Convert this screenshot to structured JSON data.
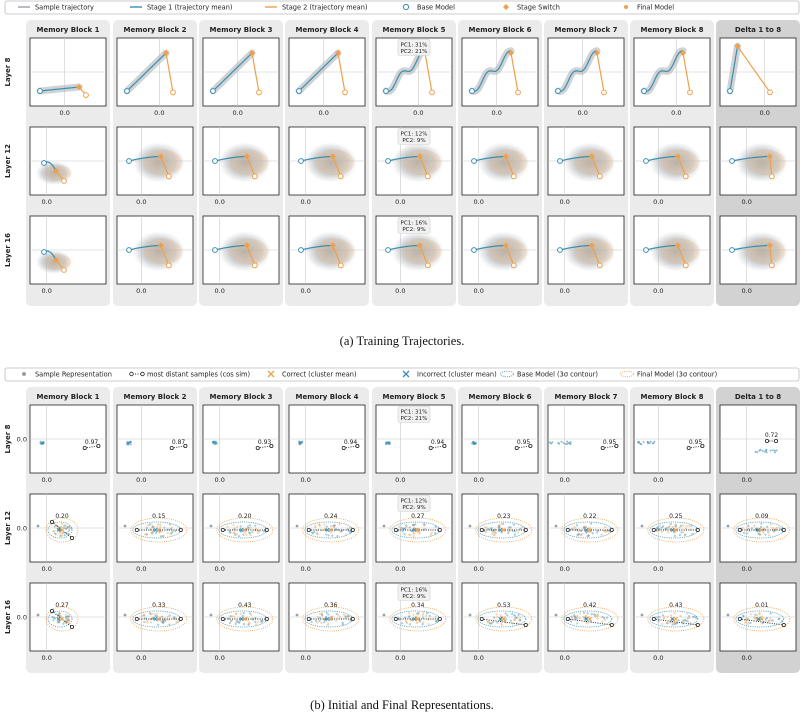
{
  "chart_data": [
    {
      "type": "scatter",
      "legend": [
        {
          "label": "Sample trajectory",
          "marker": "line",
          "color": "#9aa0a6"
        },
        {
          "label": "Stage 1 (trajectory mean)",
          "marker": "line",
          "color": "#3a8fb0"
        },
        {
          "label": "Stage 2 (trajectory mean)",
          "marker": "line",
          "color": "#f0a04b"
        },
        {
          "label": "Base Model",
          "marker": "circle-open",
          "color": "#3a8fb0"
        },
        {
          "label": "Stage Switch",
          "marker": "diamond",
          "color": "#f0a04b"
        },
        {
          "label": "Final Model",
          "marker": "dot",
          "color": "#f0a04b"
        }
      ],
      "columns": [
        "Memory Block 1",
        "Memory Block 2",
        "Memory Block 3",
        "Memory Block 4",
        "Memory Block 5",
        "Memory Block 6",
        "Memory Block 7",
        "Memory Block 8",
        "Delta 1 to 8"
      ],
      "rows": [
        "Layer 8",
        "Layer 12",
        "Layer 16"
      ],
      "tick_x": "0.0",
      "pc_annotations": [
        {
          "row": 0,
          "col": 4,
          "pc1": "PC1: 31%",
          "pc2": "PC2: 21%"
        },
        {
          "row": 1,
          "col": 4,
          "pc1": "PC1: 12%",
          "pc2": "PC2: 9%"
        },
        {
          "row": 2,
          "col": 4,
          "pc1": "PC1: 16%",
          "pc2": "PC2: 9%"
        }
      ],
      "caption": "(a) Training Trajectories."
    },
    {
      "type": "scatter",
      "legend": [
        {
          "label": "Sample Representation",
          "marker": "dot",
          "color": "#9aa0a6"
        },
        {
          "label": "most distant samples (cos sim)",
          "marker": "dotted-line-circles",
          "color": "#222222"
        },
        {
          "label": "Correct (cluster mean)",
          "marker": "x",
          "color": "#f0a04b"
        },
        {
          "label": "Incorrect (cluster mean)",
          "marker": "x",
          "color": "#3a8fb0"
        },
        {
          "label": "Base Model (3σ contour)",
          "marker": "ellipse-dotted",
          "color": "#3a8fb0"
        },
        {
          "label": "Final Model (3σ contour)",
          "marker": "ellipse-dotted",
          "color": "#f0a04b"
        }
      ],
      "columns": [
        "Memory Block 1",
        "Memory Block 2",
        "Memory Block 3",
        "Memory Block 4",
        "Memory Block 5",
        "Memory Block 6",
        "Memory Block 7",
        "Memory Block 8",
        "Delta 1 to 8"
      ],
      "rows": [
        "Layer 8",
        "Layer 12",
        "Layer 16"
      ],
      "tick_x": "0.0",
      "tick_y": "0.0",
      "cos_sim": [
        [
          "0.97",
          "0.87",
          "0.93",
          "0.94",
          "0.94",
          "0.95",
          "0.95",
          "0.95",
          "0.72"
        ],
        [
          "0.20",
          "0.15",
          "0.20",
          "0.24",
          "0.27",
          "0.23",
          "0.22",
          "0.25",
          "0.09"
        ],
        [
          "0.27",
          "0.33",
          "0.43",
          "0.36",
          "0.34",
          "0.53",
          "0.42",
          "0.43",
          "0.01"
        ]
      ],
      "pc_annotations": [
        {
          "row": 0,
          "col": 4,
          "pc1": "PC1: 31%",
          "pc2": "PC2: 21%"
        },
        {
          "row": 1,
          "col": 4,
          "pc1": "PC1: 12%",
          "pc2": "PC2: 9%"
        },
        {
          "row": 2,
          "col": 4,
          "pc1": "PC1: 16%",
          "pc2": "PC2: 9%"
        }
      ],
      "caption": "(b) Initial and Final Representations."
    }
  ],
  "colors": {
    "gray": "#9aa0a6",
    "blue": "#3a8fb0",
    "orange": "#f0a04b",
    "panel_bg": "#ebebeb",
    "delta_bg": "#d2d2d2",
    "black": "#222222"
  }
}
